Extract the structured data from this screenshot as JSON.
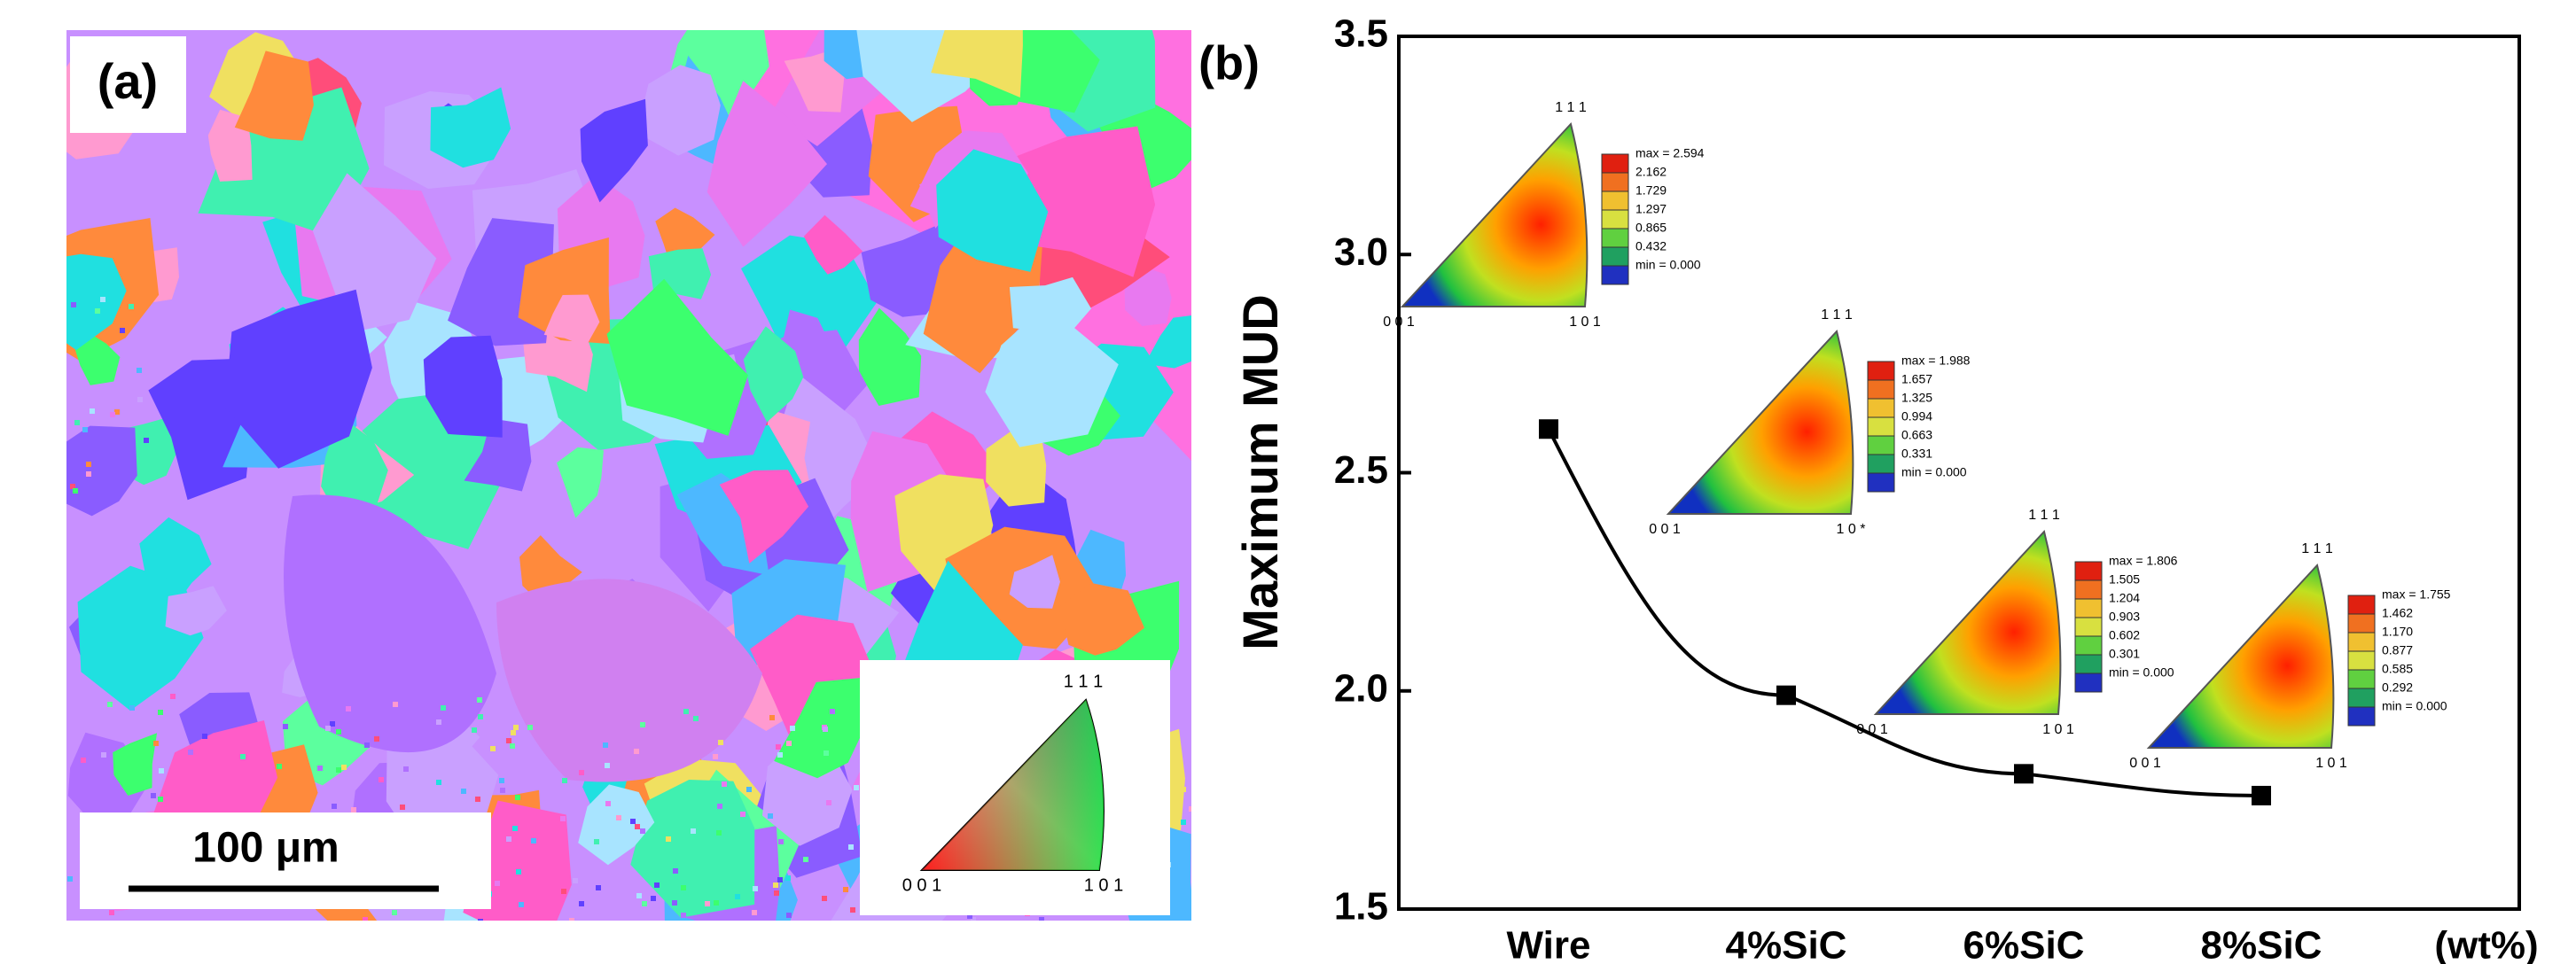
{
  "panel_a": {
    "label": "(a)",
    "scale_bar": "100 μm",
    "ipf_corners": [
      "1 1 1",
      "0 0 1",
      "1 0 1"
    ]
  },
  "chart_data": {
    "type": "line",
    "panel_label": "(b)",
    "y_label": "Maximum MUD",
    "x_unit": "(wt%)",
    "categories": [
      "Wire",
      "4%SiC",
      "6%SiC",
      "8%SiC"
    ],
    "values": [
      2.6,
      1.99,
      1.81,
      1.76
    ],
    "color": "#000000",
    "ylim": [
      1.5,
      3.5
    ],
    "yticks": [
      1.5,
      {
        "value": 2,
        "label": "2.0"
      },
      2.5,
      {
        "value": 3,
        "label": "3.0"
      },
      3.5
    ]
  },
  "insets": [
    {
      "corners": [
        "1 1 1",
        "0 0 1",
        "1 0 1"
      ],
      "scale": [
        "max = 2.594",
        "2.162",
        "1.729",
        "1.297",
        "0.865",
        "0.432",
        "min = 0.000"
      ]
    },
    {
      "corners": [
        "1 1 1",
        "0 0 1",
        "1 0 *"
      ],
      "scale": [
        "max = 1.988",
        "1.657",
        "1.325",
        "0.994",
        "0.663",
        "0.331",
        "min = 0.000"
      ]
    },
    {
      "corners": [
        "1 1 1",
        "0 0 1",
        "1 0 1"
      ],
      "scale": [
        "max = 1.806",
        "1.505",
        "1.204",
        "0.903",
        "0.602",
        "0.301",
        "min = 0.000"
      ]
    },
    {
      "corners": [
        "1 1 1",
        "0 0 1",
        "1 0 1"
      ],
      "scale": [
        "max = 1.755",
        "1.462",
        "1.170",
        "0.877",
        "0.585",
        "0.292",
        "min = 0.000"
      ]
    }
  ]
}
